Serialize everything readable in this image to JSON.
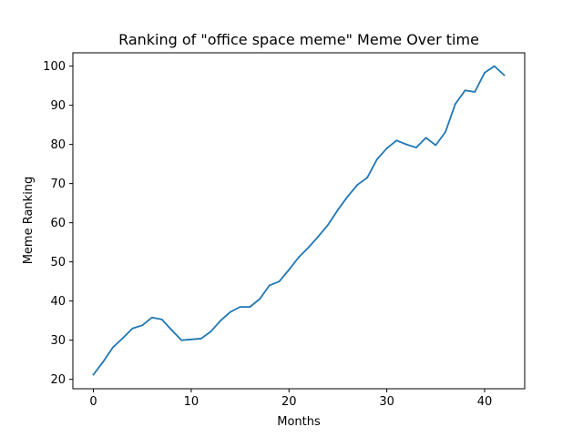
{
  "chart_data": {
    "type": "line",
    "title": "Ranking of \"office space meme\" Meme Over time",
    "xlabel": "Months",
    "ylabel": "Meme Ranking",
    "xlim": [
      -2.1,
      44.1
    ],
    "ylim": [
      17.6,
      103.4
    ],
    "xticks": [
      0,
      10,
      20,
      30,
      40
    ],
    "yticks": [
      20,
      30,
      40,
      50,
      60,
      70,
      80,
      90,
      100
    ],
    "grid": false,
    "legend": "none",
    "series": [
      {
        "color": "#1f77b4",
        "x": [
          0,
          1,
          2,
          3,
          4,
          5,
          6,
          7,
          8,
          9,
          10,
          11,
          12,
          13,
          14,
          15,
          16,
          17,
          18,
          19,
          20,
          21,
          22,
          23,
          24,
          25,
          26,
          27,
          28,
          29,
          30,
          31,
          32,
          33,
          34,
          35,
          36,
          37,
          38,
          39,
          40,
          41,
          42
        ],
        "y": [
          21.2,
          24.5,
          28.2,
          30.5,
          33.0,
          33.8,
          35.8,
          35.3,
          32.6,
          30.0,
          30.2,
          30.4,
          32.2,
          35.0,
          37.2,
          38.5,
          38.5,
          40.5,
          44.0,
          45.0,
          48.0,
          51.2,
          53.7,
          56.5,
          59.5,
          63.3,
          66.7,
          69.7,
          71.5,
          76.2,
          79.0,
          81.0,
          80.0,
          79.2,
          81.7,
          79.8,
          83.2,
          90.3,
          93.8,
          93.4,
          98.3,
          100.0,
          97.7
        ]
      }
    ]
  }
}
